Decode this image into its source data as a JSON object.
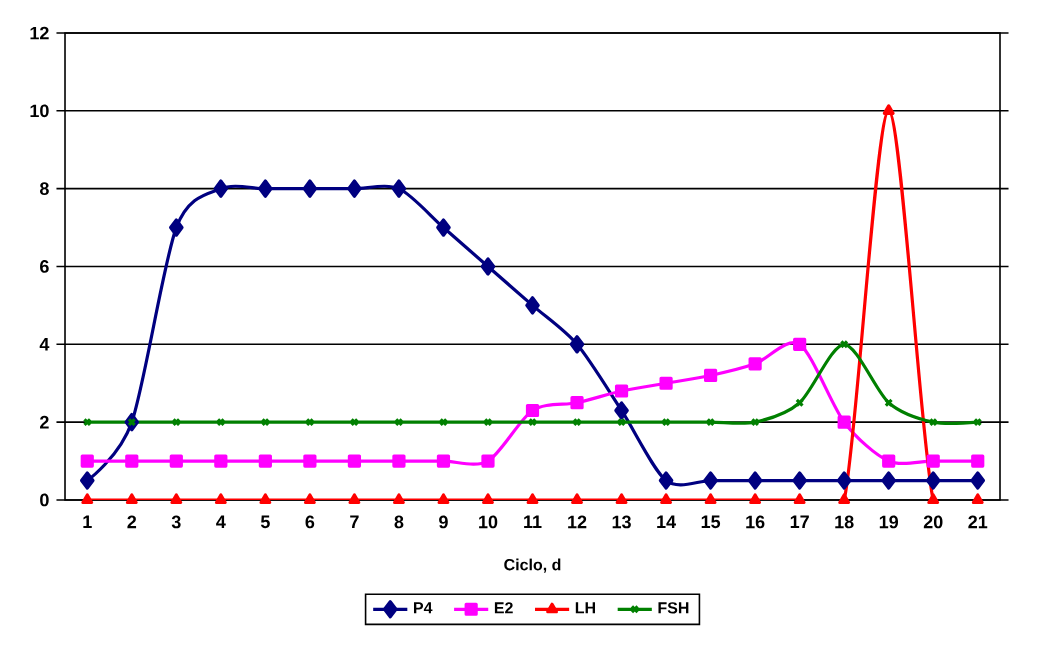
{
  "chart_data": {
    "type": "line",
    "xlabel": "Ciclo, d",
    "categories": [
      "1",
      "2",
      "3",
      "4",
      "5",
      "6",
      "7",
      "8",
      "9",
      "10",
      "11",
      "12",
      "13",
      "14",
      "15",
      "16",
      "17",
      "18",
      "19",
      "20",
      "21"
    ],
    "series": [
      {
        "name": "P4",
        "color": "#000080",
        "marker": "diamond",
        "values": [
          0.5,
          2,
          7,
          8,
          8,
          8,
          8,
          8,
          7,
          6,
          5,
          4,
          2.3,
          0.5,
          0.5,
          0.5,
          0.5,
          0.5,
          0.5,
          0.5,
          0.5
        ]
      },
      {
        "name": "E2",
        "color": "#ff00ff",
        "marker": "square",
        "values": [
          1,
          1,
          1,
          1,
          1,
          1,
          1,
          1,
          1,
          1,
          2.3,
          2.5,
          2.8,
          3,
          3.2,
          3.5,
          4,
          2,
          1,
          1,
          1
        ]
      },
      {
        "name": "LH",
        "color": "#ff0000",
        "marker": "triangle",
        "values": [
          0,
          0,
          0,
          0,
          0,
          0,
          0,
          0,
          0,
          0,
          0,
          0,
          0,
          0,
          0,
          0,
          0,
          0,
          10,
          0,
          0
        ]
      },
      {
        "name": "FSH",
        "color": "#008000",
        "marker": "cross",
        "values": [
          2,
          2,
          2,
          2,
          2,
          2,
          2,
          2,
          2,
          2,
          2,
          2,
          2,
          2,
          2,
          2,
          2.5,
          4,
          2.5,
          2,
          2
        ]
      }
    ],
    "ylim": [
      0,
      12
    ],
    "yticks": [
      0,
      2,
      4,
      6,
      8,
      10,
      12
    ],
    "grid": "y",
    "legend": "bottom",
    "line_style": "solid"
  }
}
